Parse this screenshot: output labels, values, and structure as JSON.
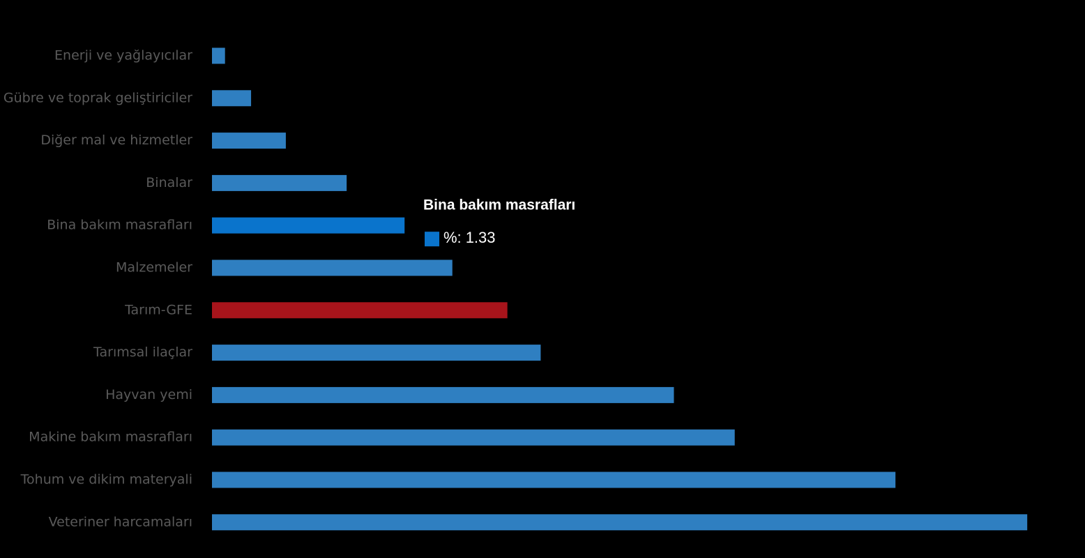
{
  "chart_data": {
    "type": "bar",
    "orientation": "horizontal",
    "categories": [
      "Enerji  ve yağlayıcılar",
      "Gübre ve toprak geliştiriciler",
      "Diğer mal ve hizmetler",
      "Binalar",
      "Bina bakım masrafları",
      "Malzemeler",
      "Tarım-GFE",
      "Tarımsal ilaçlar",
      "Hayvan yemi",
      "Makine bakım masrafları",
      "Tohum ve dikim materyali",
      "Veteriner harcamaları"
    ],
    "values": [
      0.09,
      0.27,
      0.51,
      0.93,
      1.33,
      1.66,
      2.04,
      2.27,
      3.19,
      3.61,
      4.72,
      5.63
    ],
    "colors": [
      "#2f7fc1",
      "#2f7fc1",
      "#2f7fc1",
      "#2f7fc1",
      "#0a74cc",
      "#2f7fc1",
      "#a8141b",
      "#2f7fc1",
      "#2f7fc1",
      "#2f7fc1",
      "#2f7fc1",
      "#2f7fc1"
    ],
    "xlim": [
      0,
      6
    ],
    "tooltip": {
      "index": 4,
      "label": "%:"
    }
  }
}
